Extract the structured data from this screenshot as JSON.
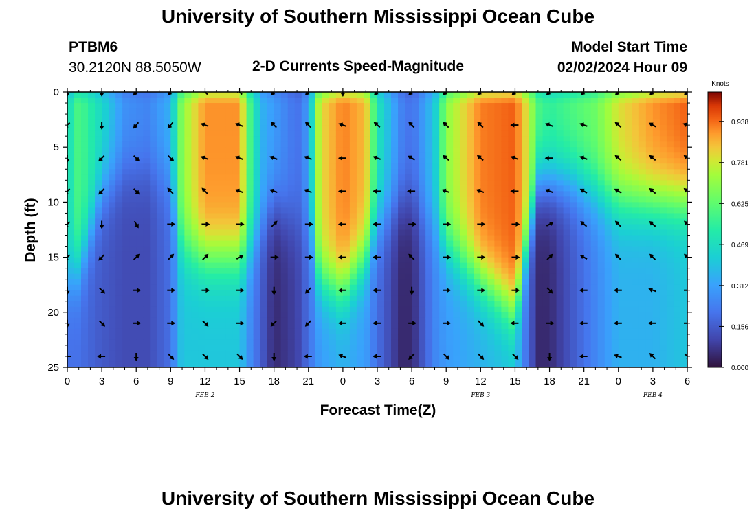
{
  "page": {
    "title_top": "University of Southern Mississippi Ocean Cube",
    "title_bottom": "University of Southern Mississippi Ocean Cube",
    "station_id": "PTBM6",
    "station_coords": "30.2120N  88.5050W",
    "plot_title": "2-D Currents Speed-Magnitude",
    "model_start_label": "Model Start Time",
    "model_start_value": "02/02/2024 Hour 09"
  },
  "chart_data": {
    "type": "heatmap",
    "title": "2-D Currents Speed-Magnitude",
    "xlabel": "Forecast Time(Z)",
    "ylabel": "Depth (ft)",
    "x_tick_labels": [
      "0",
      "3",
      "6",
      "9",
      "12",
      "15",
      "18",
      "21",
      "0",
      "3",
      "6",
      "9",
      "12",
      "15",
      "18",
      "21",
      "0",
      "3",
      "6"
    ],
    "x_hours_range": [
      0,
      54
    ],
    "ylim": [
      0,
      25
    ],
    "y_ticks": [
      0,
      5,
      10,
      15,
      20,
      25
    ],
    "date_labels": [
      {
        "text": "FEB 2",
        "hour": 12
      },
      {
        "text": "FEB 3",
        "hour": 36
      },
      {
        "text": "FEB 4",
        "hour": 51
      }
    ],
    "colorbar": {
      "unit": "Knots",
      "ticks": [
        "0.938",
        "0.781",
        "0.625",
        "0.469",
        "0.312",
        "0.156",
        "0.000"
      ],
      "min": 0.0,
      "max": 1.05
    },
    "field_anchors": [
      {
        "hour": 0,
        "surface": 0.45,
        "bottom": 0.2,
        "transition_depth": 17
      },
      {
        "hour": 1,
        "surface": 0.6,
        "bottom": 0.2,
        "transition_depth": 16
      },
      {
        "hour": 3,
        "surface": 0.45,
        "bottom": 0.15,
        "transition_depth": 9
      },
      {
        "hour": 5,
        "surface": 0.28,
        "bottom": 0.12,
        "transition_depth": 7
      },
      {
        "hour": 7,
        "surface": 0.25,
        "bottom": 0.12,
        "transition_depth": 7
      },
      {
        "hour": 9,
        "surface": 0.35,
        "bottom": 0.2,
        "transition_depth": 8
      },
      {
        "hour": 10,
        "surface": 0.7,
        "bottom": 0.4,
        "transition_depth": 14
      },
      {
        "hour": 12,
        "surface": 0.9,
        "bottom": 0.4,
        "transition_depth": 15
      },
      {
        "hour": 15,
        "surface": 0.9,
        "bottom": 0.4,
        "transition_depth": 15
      },
      {
        "hour": 16,
        "surface": 0.55,
        "bottom": 0.25,
        "transition_depth": 14
      },
      {
        "hour": 17,
        "surface": 0.35,
        "bottom": 0.15,
        "transition_depth": 12
      },
      {
        "hour": 18,
        "surface": 0.3,
        "bottom": 0.05,
        "transition_depth": 10
      },
      {
        "hour": 20,
        "surface": 0.2,
        "bottom": 0.1,
        "transition_depth": 12
      },
      {
        "hour": 21,
        "surface": 0.3,
        "bottom": 0.2,
        "transition_depth": 12
      },
      {
        "hour": 22,
        "surface": 0.8,
        "bottom": 0.3,
        "transition_depth": 17
      },
      {
        "hour": 24,
        "surface": 0.92,
        "bottom": 0.35,
        "transition_depth": 18
      },
      {
        "hour": 26,
        "surface": 0.85,
        "bottom": 0.3,
        "transition_depth": 15
      },
      {
        "hour": 27,
        "surface": 0.5,
        "bottom": 0.2,
        "transition_depth": 12
      },
      {
        "hour": 29,
        "surface": 0.25,
        "bottom": 0.05,
        "transition_depth": 10
      },
      {
        "hour": 30,
        "surface": 0.2,
        "bottom": 0.05,
        "transition_depth": 10
      },
      {
        "hour": 32,
        "surface": 0.4,
        "bottom": 0.25,
        "transition_depth": 12
      },
      {
        "hour": 33,
        "surface": 0.7,
        "bottom": 0.3,
        "transition_depth": 14
      },
      {
        "hour": 36,
        "surface": 0.92,
        "bottom": 0.35,
        "transition_depth": 17
      },
      {
        "hour": 39,
        "surface": 0.95,
        "bottom": 0.4,
        "transition_depth": 20
      },
      {
        "hour": 40,
        "surface": 0.8,
        "bottom": 0.2,
        "transition_depth": 14
      },
      {
        "hour": 41,
        "surface": 0.6,
        "bottom": 0.05,
        "transition_depth": 8
      },
      {
        "hour": 42,
        "surface": 0.55,
        "bottom": 0.05,
        "transition_depth": 8
      },
      {
        "hour": 44,
        "surface": 0.6,
        "bottom": 0.15,
        "transition_depth": 8
      },
      {
        "hour": 46,
        "surface": 0.65,
        "bottom": 0.25,
        "transition_depth": 9
      },
      {
        "hour": 48,
        "surface": 0.8,
        "bottom": 0.35,
        "transition_depth": 10
      },
      {
        "hour": 51,
        "surface": 0.9,
        "bottom": 0.35,
        "transition_depth": 10
      },
      {
        "hour": 54,
        "surface": 0.95,
        "bottom": 0.4,
        "transition_depth": 10
      }
    ],
    "arrow_rows_depth_ft": [
      0,
      3,
      6,
      9,
      12,
      15,
      18,
      21,
      24
    ],
    "arrow_columns_hours": [
      0,
      3,
      6,
      9,
      12,
      15,
      18,
      21,
      24,
      27,
      30,
      33,
      36,
      39,
      42,
      45,
      48,
      51,
      54
    ],
    "arrow_directions_deg": [
      [
        90,
        90,
        130,
        130,
        225,
        225,
        135,
        135,
        90,
        135,
        135,
        135,
        135,
        135,
        135,
        135,
        135,
        135,
        135
      ],
      [
        135,
        90,
        130,
        130,
        200,
        200,
        225,
        225,
        200,
        220,
        225,
        225,
        225,
        180,
        200,
        200,
        220,
        210,
        200
      ],
      [
        90,
        135,
        45,
        45,
        200,
        200,
        200,
        200,
        180,
        200,
        210,
        220,
        220,
        200,
        180,
        200,
        220,
        220,
        220
      ],
      [
        135,
        135,
        45,
        225,
        225,
        200,
        200,
        200,
        180,
        180,
        180,
        200,
        200,
        180,
        200,
        210,
        210,
        220,
        220
      ],
      [
        135,
        90,
        60,
        0,
        0,
        0,
        315,
        0,
        180,
        180,
        0,
        0,
        0,
        0,
        330,
        220,
        225,
        220,
        225
      ],
      [
        135,
        135,
        315,
        315,
        315,
        330,
        0,
        0,
        180,
        180,
        225,
        0,
        0,
        0,
        315,
        210,
        225,
        225,
        225
      ],
      [
        90,
        45,
        0,
        0,
        0,
        0,
        90,
        135,
        180,
        180,
        90,
        0,
        0,
        0,
        45,
        180,
        180,
        200,
        0
      ],
      [
        90,
        45,
        0,
        0,
        45,
        0,
        135,
        135,
        180,
        180,
        0,
        0,
        45,
        180,
        0,
        180,
        180,
        180,
        0
      ],
      [
        180,
        180,
        90,
        45,
        45,
        45,
        90,
        180,
        200,
        180,
        135,
        45,
        45,
        45,
        90,
        180,
        200,
        225,
        45
      ]
    ]
  }
}
